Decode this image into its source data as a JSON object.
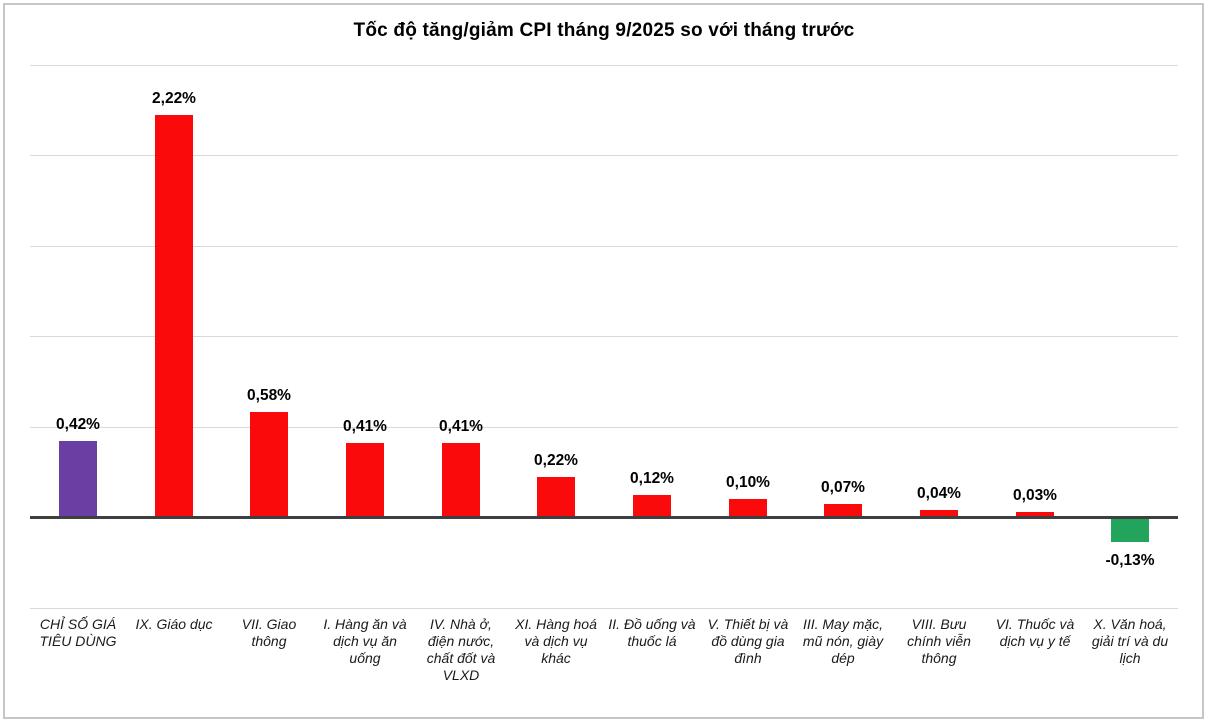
{
  "chart_data": {
    "type": "bar",
    "title": "Tốc độ tăng/giảm CPI tháng 9/2025 so với tháng trước",
    "categories": [
      "CHỈ SỐ GIÁ TIÊU DÙNG",
      "IX. Giáo dục",
      "VII. Giao thông",
      "I. Hàng ăn và dịch vụ ăn uống",
      "IV. Nhà ở, điện nước, chất đốt và VLXD",
      "XI. Hàng hoá và dịch vụ khác",
      "II. Đồ uống và thuốc lá",
      "V. Thiết bị và đồ dùng gia đình",
      "III. May mặc, mũ nón, giày dép",
      "VIII. Bưu chính viễn thông",
      "VI. Thuốc và dịch vụ y tế",
      "X. Văn hoá, giải trí và du lịch"
    ],
    "values": [
      0.42,
      2.22,
      0.58,
      0.41,
      0.41,
      0.22,
      0.12,
      0.1,
      0.07,
      0.04,
      0.03,
      -0.13
    ],
    "value_labels": [
      "0,42%",
      "2,22%",
      "0,58%",
      "0,41%",
      "0,41%",
      "0,22%",
      "0,12%",
      "0,10%",
      "0,07%",
      "0,04%",
      "0,03%",
      "-0,13%"
    ],
    "bar_colors": [
      "#6A3FA3",
      "#FA0A0A",
      "#FA0A0A",
      "#FA0A0A",
      "#FA0A0A",
      "#FA0A0A",
      "#FA0A0A",
      "#FA0A0A",
      "#FA0A0A",
      "#FA0A0A",
      "#FA0A0A",
      "#22A45C"
    ],
    "ylim": [
      -0.5,
      2.5
    ],
    "gridline_step": 0.5,
    "grid": true,
    "legend": "none",
    "xlabel": "",
    "ylabel": "",
    "accent_colors": {
      "cpi_total": "#6A3FA3",
      "increase": "#FA0A0A",
      "decrease": "#22A45C"
    },
    "gridline_color": "#d9d9d9",
    "axis_color": "#3f3f3f"
  }
}
